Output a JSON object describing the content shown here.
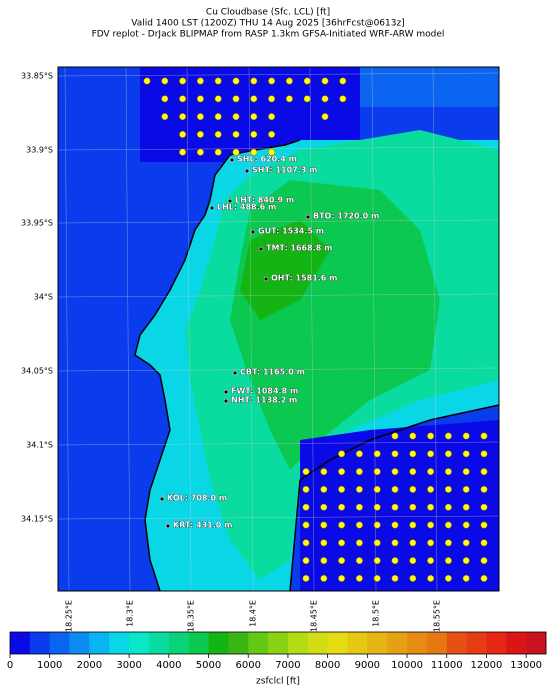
{
  "header": {
    "title": [
      "Cu Cloudbase (Sfc. LCL) [ft]",
      "Valid 1400 LST (1200Z) THU 14 Aug 2025 [36hrFcst@0613z]",
      "FDV replot - DrJack BLIPMAP from RASP 1.3km GFSA-Initiated WRF-ARW model"
    ]
  },
  "map": {
    "lat_labels": [
      "33.85°S",
      "33.9°S",
      "33.95°S",
      "34°S",
      "34.05°S",
      "34.1°S",
      "34.15°S"
    ],
    "lon_labels": [
      "18.25°E",
      "18.3°E",
      "18.35°E",
      "18.4°E",
      "18.45°E",
      "18.5°E",
      "18.55°E"
    ],
    "stations": [
      "SHL: 620.4 m",
      "SHT: 1107.3 m",
      "LHT: 840.9 m",
      "LHL: 488.6 m",
      "BTO: 1720.0 m",
      "GUT: 1534.5 m",
      "TMT: 1668.8 m",
      "OHT: 1581.6 m",
      "CBT: 1165.0 m",
      "FWT: 1084.8 m",
      "NHT: 1138.2 m",
      "KOL: 708.0 m",
      "KRT: 431.0 m"
    ]
  },
  "colorbar": {
    "lim": [
      0,
      13500
    ],
    "ticks": [
      0,
      1000,
      2000,
      3000,
      4000,
      5000,
      6000,
      7000,
      8000,
      9000,
      10000,
      11000,
      12000,
      13000
    ],
    "colors": [
      "#0a0ae6",
      "#0a3ced",
      "#0a64f0",
      "#0a8cf0",
      "#0ab4f0",
      "#0ad7e6",
      "#0ae6c8",
      "#0adca0",
      "#0ad278",
      "#0ac850",
      "#14b414",
      "#3cb414",
      "#64c814",
      "#8cd214",
      "#b4dc14",
      "#d2dc14",
      "#e6dc14",
      "#e6c814",
      "#e6b414",
      "#e6a014",
      "#e68c14",
      "#e67814",
      "#e65014",
      "#e63c14",
      "#e62814",
      "#dc1414",
      "#c8141e"
    ],
    "label": "zsfclcl [ft]"
  }
}
